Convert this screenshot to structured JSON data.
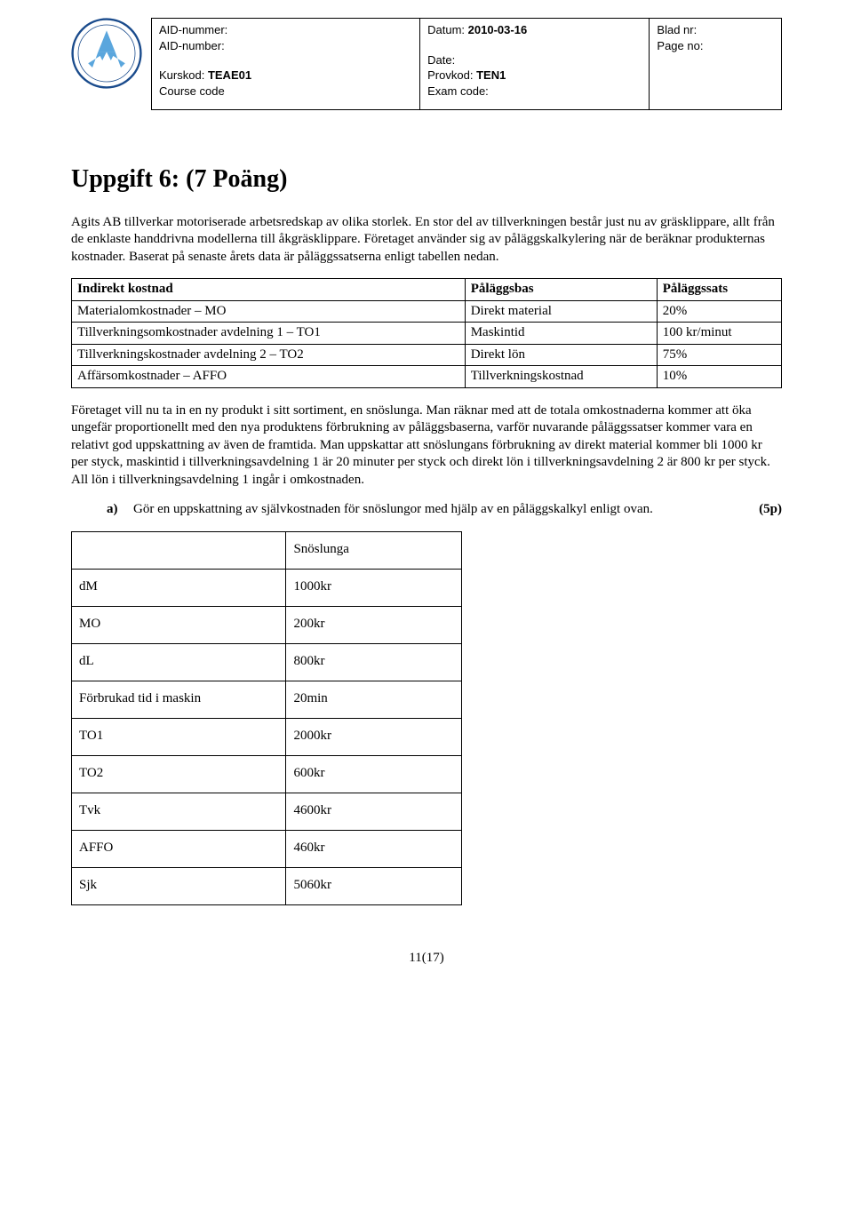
{
  "header": {
    "aid_sv": "AID-nummer:",
    "aid_en": "AID-number:",
    "kurskod_label": "Kurskod:",
    "kurskod_value": "TEAE01",
    "course_code_en": "Course code",
    "datum_label": "Datum:",
    "datum_value": "2010-03-16",
    "date_en": "Date:",
    "provkod_label": "Provkod:",
    "provkod_value": "TEN1",
    "exam_code_en": "Exam code:",
    "blad_sv": "Blad nr:",
    "blad_en": "Page no:"
  },
  "title": "Uppgift 6: (7 Poäng)",
  "para1": "Agits AB tillverkar motoriserade arbetsredskap av olika storlek. En stor del av tillverkningen består just nu av gräsklippare, allt från de enklaste handdrivna modellerna till åkgräsklippare. Företaget använder sig av påläggskalkylering när de beräknar produkternas kostnader. Baserat på senaste årets data är påläggssatserna enligt tabellen nedan.",
  "overhead_table": {
    "headers": [
      "Indirekt kostnad",
      "Påläggsbas",
      "Påläggssats"
    ],
    "rows": [
      [
        "Materialomkostnader – MO",
        "Direkt material",
        "20%"
      ],
      [
        "Tillverkningsomkostnader avdelning 1 – TO1",
        "Maskintid",
        "100 kr/minut"
      ],
      [
        "Tillverkningskostnader avdelning 2 – TO2",
        "Direkt lön",
        "75%"
      ],
      [
        "Affärsomkostnader – AFFO",
        "Tillverkningskostnad",
        "10%"
      ]
    ]
  },
  "para2": "Företaget vill nu ta in en ny produkt i sitt sortiment, en snöslunga. Man räknar med att de totala omkostnaderna kommer att öka ungefär proportionellt med den nya produktens förbrukning av påläggsbaserna, varför nuvarande påläggssatser kommer vara en relativt god uppskattning av även de framtida. Man uppskattar att snöslungans förbrukning av direkt material kommer bli 1000 kr per styck, maskintid i tillverkningsavdelning 1 är 20 minuter per styck och direkt lön i tillverkningsavdelning 2 är 800 kr per styck. All lön i tillverkningsavdelning 1 ingår i omkostnaden.",
  "question": {
    "marker": "a)",
    "text": "Gör en uppskattning av självkostnaden för snöslungor med hjälp av en påläggskalkyl enligt ovan.",
    "points": "(5p)"
  },
  "calc_table": {
    "header_col2": "Snöslunga",
    "rows": [
      [
        "dM",
        "1000kr"
      ],
      [
        "MO",
        "200kr"
      ],
      [
        "dL",
        "800kr"
      ],
      [
        "Förbrukad tid i maskin",
        "20min"
      ],
      [
        "TO1",
        "2000kr"
      ],
      [
        "TO2",
        "600kr"
      ],
      [
        "Tvk",
        "4600kr"
      ],
      [
        "AFFO",
        "460kr"
      ],
      [
        "Sjk",
        "5060kr"
      ]
    ]
  },
  "page_number": "11(17)",
  "logo": {
    "outer_ring_color": "#1a4b8c",
    "inner_color": "#5aa6dd",
    "white": "#ffffff"
  }
}
